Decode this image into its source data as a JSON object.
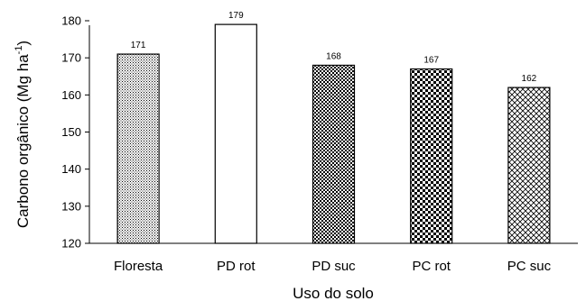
{
  "chart_data": {
    "type": "bar",
    "categories": [
      "Floresta",
      "PD rot",
      "PD suc",
      "PC rot",
      "PC suc"
    ],
    "values": [
      171,
      179,
      168,
      167,
      162
    ],
    "data_labels": [
      "171",
      "179",
      "168",
      "167",
      "162"
    ],
    "title": "",
    "xlabel": "Uso do solo",
    "ylabel_main": "Carbono orgânico (Mg ha",
    "ylabel_sup": "-1",
    "ylabel_close": ")",
    "ylim": [
      120,
      180
    ],
    "yticks": [
      120,
      130,
      140,
      150,
      160,
      170,
      180
    ],
    "ytick_labels": [
      "120",
      "130",
      "140",
      "150",
      "160",
      "170",
      "180"
    ],
    "grid": false,
    "legend": "none",
    "bar_fills": [
      "fine-dots",
      "white",
      "dense-check",
      "checkerboard",
      "crosshatch"
    ]
  }
}
